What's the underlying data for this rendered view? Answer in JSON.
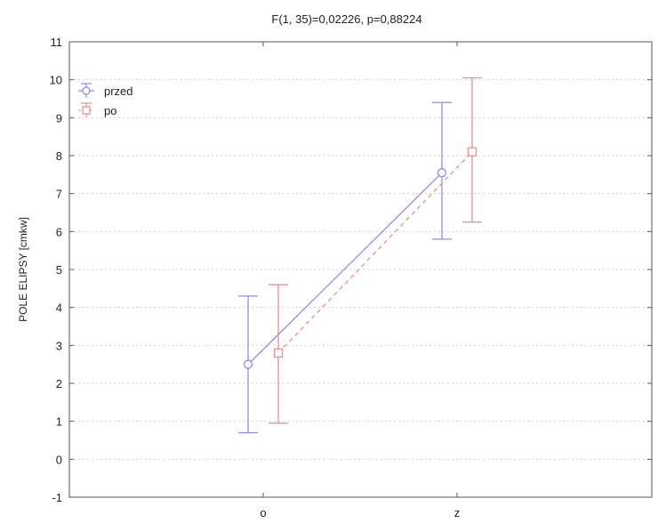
{
  "chart_data": {
    "type": "line",
    "title": "F(1, 35)=0,02226, p=0,88224",
    "xlabel": "",
    "ylabel": "POLE ELIPSY [cmkw]",
    "categories": [
      "o",
      "z"
    ],
    "ylim": [
      -1,
      11
    ],
    "yticks": [
      -1,
      0,
      1,
      2,
      3,
      4,
      5,
      6,
      7,
      8,
      9,
      10,
      11
    ],
    "grid": true,
    "legend_position": "top-left",
    "series": [
      {
        "name": "przed",
        "color": "#8c8ce8",
        "marker": "circle",
        "line_style": "solid",
        "values": [
          2.5,
          7.55
        ],
        "err_low": [
          0.7,
          5.8
        ],
        "err_high": [
          4.3,
          9.4
        ]
      },
      {
        "name": "po",
        "color": "#e89090",
        "marker": "square",
        "line_style": "dashed",
        "values": [
          2.8,
          8.1
        ],
        "err_low": [
          0.95,
          6.25
        ],
        "err_high": [
          4.6,
          10.05
        ]
      }
    ]
  }
}
